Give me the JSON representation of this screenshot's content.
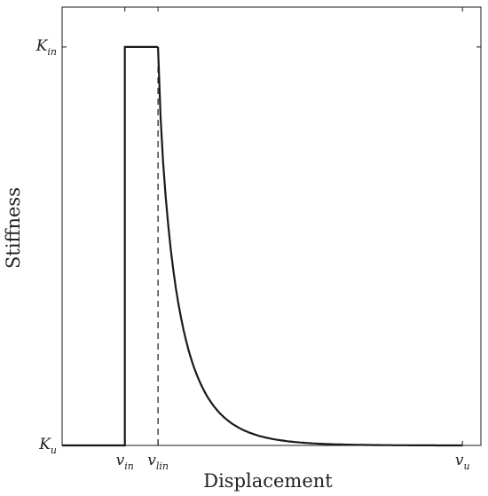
{
  "chart_data": {
    "type": "line",
    "title": "",
    "xlabel": "Displacement",
    "ylabel": "Stiffness",
    "x_ticks": [
      {
        "base": "v",
        "sub": "in",
        "value": 0.085
      },
      {
        "base": "v",
        "sub": "lin",
        "value": 0.175
      },
      {
        "base": "v",
        "sub": "u",
        "value": 1.0
      }
    ],
    "y_ticks": [
      {
        "base": "K",
        "sub": "in",
        "value": 1.0
      },
      {
        "base": "K",
        "sub": "u",
        "value": 0.0
      }
    ],
    "xlim": [
      -0.085,
      1.05
    ],
    "ylim": [
      0,
      1.1
    ],
    "grid": false,
    "series": [
      {
        "style": "solid",
        "color": "#1a1a1a",
        "x": [
          -0.085,
          0.085,
          0.085,
          0.175,
          0.175
        ],
        "y": [
          0,
          0,
          1.0,
          1.0,
          1.0
        ]
      }
    ],
    "curve": {
      "x_start": 0.175,
      "x_end": 1.0,
      "y_start": 1.0,
      "y_end": 0.0,
      "shape": "decay"
    },
    "reference_lines": [
      {
        "style": "dashed",
        "x": 0.175,
        "y_from": 0,
        "y_to": 1.0
      }
    ]
  }
}
